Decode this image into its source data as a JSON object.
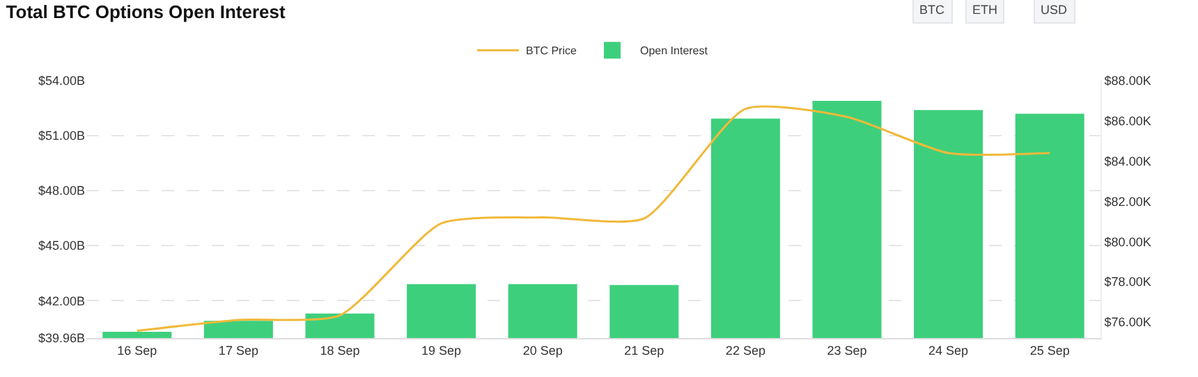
{
  "chart_data": {
    "type": "bar",
    "title": "Total BTC Options Open Interest",
    "categories": [
      "16 Sep",
      "17 Sep",
      "18 Sep",
      "19 Sep",
      "20 Sep",
      "21 Sep",
      "22 Sep",
      "23 Sep",
      "24 Sep",
      "25 Sep"
    ],
    "series": [
      {
        "name": "BTC Price",
        "type": "line",
        "axis": "y2",
        "color": "#f0b93a",
        "values": [
          75.56,
          76.1,
          76.33,
          80.9,
          81.2,
          81.15,
          86.6,
          86.2,
          84.4,
          84.4
        ]
      },
      {
        "name": "Open Interest",
        "color": "#3ecf7c",
        "values": [
          40.3,
          40.9,
          41.3,
          42.9,
          42.9,
          42.85,
          51.93,
          52.9,
          52.4,
          52.2
        ]
      }
    ],
    "ylim": [
      39.96,
      54.0
    ],
    "yticks": [
      {
        "value": 39.96,
        "label": "$39.96B"
      },
      {
        "value": 42,
        "label": "$42.00B"
      },
      {
        "value": 45,
        "label": "$45.00B"
      },
      {
        "value": 48,
        "label": "$48.00B"
      },
      {
        "value": 51,
        "label": "$51.00B"
      },
      {
        "value": 54,
        "label": "$54.00B"
      }
    ],
    "y2lim": [
      75.2,
      88.0
    ],
    "y2ticks": [
      {
        "value": 76,
        "label": "$76.00K"
      },
      {
        "value": 78,
        "label": "$78.00K"
      },
      {
        "value": 80,
        "label": "$80.00K"
      },
      {
        "value": 82,
        "label": "$82.00K"
      },
      {
        "value": 84,
        "label": "$84.00K"
      },
      {
        "value": 86,
        "label": "$86.00K"
      },
      {
        "value": 88,
        "label": "$88.00K"
      }
    ],
    "grid": "y",
    "legend": "top",
    "marker": "none",
    "line_style": "solid",
    "annotations": [
      "BTC",
      "ETH",
      "USD"
    ]
  }
}
